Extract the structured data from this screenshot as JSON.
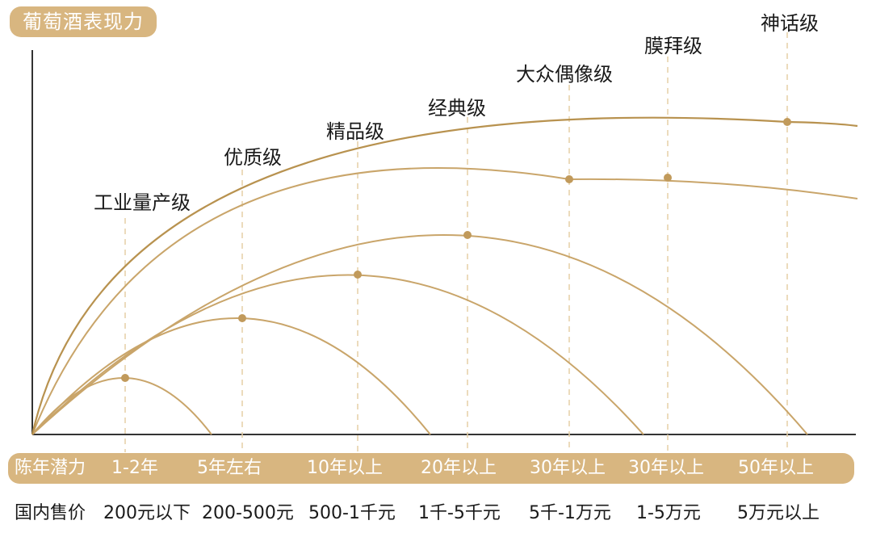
{
  "title": "葡萄酒表现力",
  "age_axis_label": "陈年潜力",
  "price_axis_label": "国内售价",
  "tiers": [
    {
      "name": "工业量产级",
      "age": "1-2年",
      "price": "200元以下"
    },
    {
      "name": "优质级",
      "age": "5年左右",
      "price": "200-500元"
    },
    {
      "name": "精品级",
      "age": "10年以上",
      "price": "500-1千元"
    },
    {
      "name": "经典级",
      "age": "20年以上",
      "price": "1千-5千元"
    },
    {
      "name": "大众偶像级",
      "age": "30年以上",
      "price": "5千-1万元"
    },
    {
      "name": "膜拜级",
      "age": "30年以上",
      "price": "1-5万元"
    },
    {
      "name": "神话级",
      "age": "50年以上",
      "price": "5万元以上"
    }
  ],
  "colors": {
    "accent": "#d8b680",
    "curve": "#c9a56a",
    "curve_dark": "#b8924f",
    "dot": "#c19a5b",
    "axis": "#333333"
  }
}
